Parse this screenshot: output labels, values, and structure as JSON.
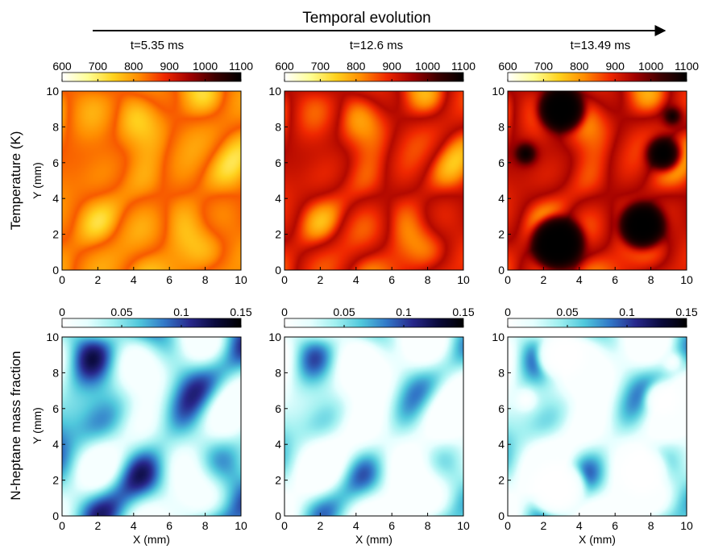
{
  "header": {
    "title": "Temporal evolution"
  },
  "chart_data": {
    "type": "heatmap",
    "time_labels": [
      "t=5.35 ms",
      "t=12.6 ms",
      "t=13.49 ms"
    ],
    "row_labels": [
      "Temperature (K)",
      "N-heptane mass fraction"
    ],
    "xlabel": "X (mm)",
    "ylabel": "Y (mm)",
    "xlim": [
      0,
      10
    ],
    "ylim": [
      0,
      10
    ],
    "x_ticks": [
      "0",
      "2",
      "4",
      "6",
      "8",
      "10"
    ],
    "y_ticks": [
      "0",
      "2",
      "4",
      "6",
      "8",
      "10"
    ],
    "colorbars": [
      {
        "variable": "temperature",
        "range": [
          600,
          1100
        ],
        "ticks": [
          "600",
          "700",
          "800",
          "900",
          "1000",
          "1100"
        ],
        "colormap": [
          "#ffffff",
          "#ffff96",
          "#ffd21e",
          "#ff8c00",
          "#f02800",
          "#a00000",
          "#3c0000",
          "#000000"
        ]
      },
      {
        "variable": "n-heptane",
        "range": [
          0,
          0.15
        ],
        "ticks": [
          "0",
          "0.05",
          "0.1",
          "0.15"
        ],
        "colormap": [
          "#ffffff",
          "#e6ffff",
          "#a0f0f0",
          "#50c8dc",
          "#3278c8",
          "#28288c",
          "#0a0a3c",
          "#000000"
        ]
      }
    ],
    "panels": [
      {
        "row": 0,
        "col": 0,
        "field": "temperature",
        "time": "t=5.35 ms",
        "approx_range_K": [
          700,
          800
        ]
      },
      {
        "row": 0,
        "col": 1,
        "field": "temperature",
        "time": "t=12.6 ms",
        "approx_range_K": [
          700,
          950
        ]
      },
      {
        "row": 0,
        "col": 2,
        "field": "temperature",
        "time": "t=13.49 ms",
        "approx_range_K": [
          700,
          1100
        ]
      },
      {
        "row": 1,
        "col": 0,
        "field": "n-heptane",
        "time": "t=5.35 ms",
        "approx_range": [
          0,
          0.15
        ]
      },
      {
        "row": 1,
        "col": 1,
        "field": "n-heptane",
        "time": "t=12.6 ms",
        "approx_range": [
          0,
          0.15
        ]
      },
      {
        "row": 1,
        "col": 2,
        "field": "n-heptane",
        "time": "t=13.49 ms",
        "approx_range": [
          0,
          0.15
        ]
      }
    ]
  }
}
